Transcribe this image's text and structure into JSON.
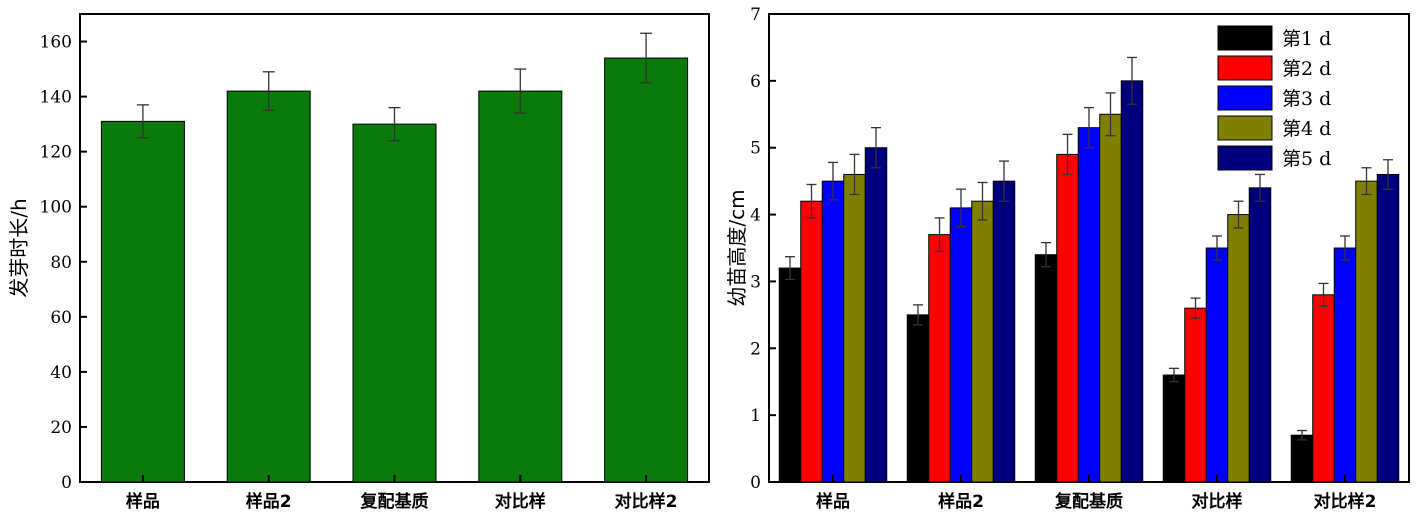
{
  "chart_data": [
    {
      "type": "bar",
      "categories": [
        "样品",
        "样品2",
        "复配基质",
        "对比样",
        "对比样2"
      ],
      "values": [
        131,
        142,
        130,
        142,
        154
      ],
      "errors": [
        6,
        7,
        6,
        8,
        9
      ],
      "color": "#0a7a0a",
      "ylabel": "发芽时长/h",
      "xlabel": "",
      "ylim": [
        0,
        170
      ],
      "yticks": [
        0,
        20,
        40,
        60,
        80,
        100,
        120,
        140,
        160
      ],
      "grid": false
    },
    {
      "type": "bar",
      "categories": [
        "样品",
        "样品2",
        "复配基质",
        "对比样",
        "对比样2"
      ],
      "series": [
        {
          "name": "第1 d",
          "color": "#000000",
          "values": [
            3.2,
            2.5,
            3.4,
            1.6,
            0.7
          ],
          "errors": [
            0.17,
            0.15,
            0.18,
            0.1,
            0.07
          ]
        },
        {
          "name": "第2 d",
          "color": "#ff0000",
          "values": [
            4.2,
            3.7,
            4.9,
            2.6,
            2.8
          ],
          "errors": [
            0.25,
            0.25,
            0.3,
            0.15,
            0.17
          ]
        },
        {
          "name": "第3 d",
          "color": "#0000ff",
          "values": [
            4.5,
            4.1,
            5.3,
            3.5,
            3.5
          ],
          "errors": [
            0.28,
            0.28,
            0.3,
            0.18,
            0.18
          ]
        },
        {
          "name": "第4 d",
          "color": "#808000",
          "values": [
            4.6,
            4.2,
            5.5,
            4.0,
            4.5
          ],
          "errors": [
            0.3,
            0.28,
            0.32,
            0.2,
            0.2
          ]
        },
        {
          "name": "第5 d",
          "color": "#00007f",
          "values": [
            5.0,
            4.5,
            6.0,
            4.4,
            4.6
          ],
          "errors": [
            0.3,
            0.3,
            0.35,
            0.2,
            0.22
          ]
        }
      ],
      "ylabel": "幼苗高度/cm",
      "xlabel": "",
      "ylim": [
        0,
        7
      ],
      "yticks": [
        0,
        1,
        2,
        3,
        4,
        5,
        6,
        7
      ],
      "legend": "top-right",
      "grid": false
    }
  ]
}
